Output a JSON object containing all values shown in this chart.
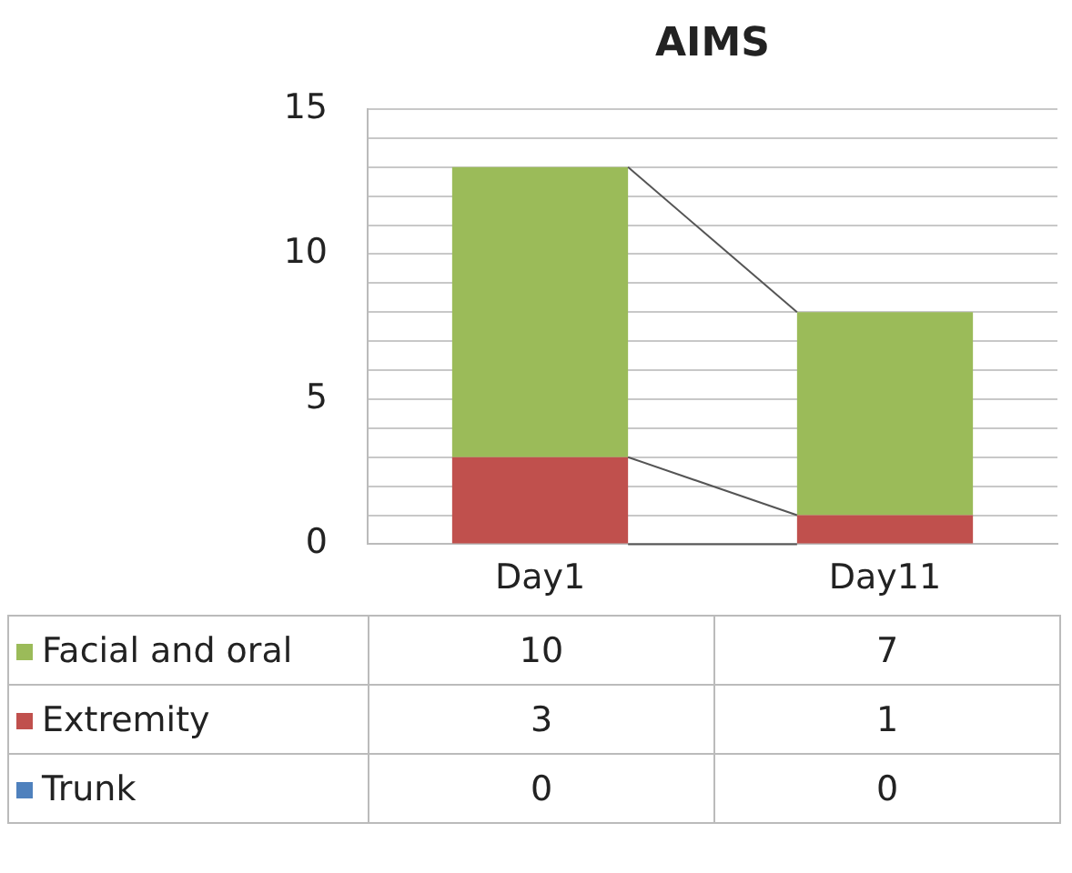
{
  "chart_data": {
    "type": "bar",
    "title": "AIMS",
    "categories": [
      "Day1",
      "Day11"
    ],
    "stacked": true,
    "data_labels": true,
    "legend": "bottom",
    "grid": "y",
    "ylim": [
      0,
      15
    ],
    "yticks": [
      0,
      {
        "value": 1,
        "label": null
      },
      {
        "value": 2,
        "label": null
      },
      {
        "value": 3,
        "label": null
      },
      {
        "value": 4,
        "label": null
      },
      5,
      {
        "value": 6,
        "label": null
      },
      {
        "value": 7,
        "label": null
      },
      {
        "value": 8,
        "label": null
      },
      {
        "value": 9,
        "label": null
      },
      10,
      {
        "value": 11,
        "label": null
      },
      {
        "value": 12,
        "label": null
      },
      {
        "value": 13,
        "label": null
      },
      {
        "value": 14,
        "label": null
      },
      15
    ],
    "series": [
      {
        "name": "Trunk",
        "color": "#4f81bd",
        "values": [
          0,
          0
        ]
      },
      {
        "name": "Extremity",
        "color": "#c0504d",
        "values": [
          3,
          1
        ]
      },
      {
        "name": "Facial and oral",
        "color": "#9bbb59",
        "values": [
          10,
          7
        ]
      }
    ]
  }
}
